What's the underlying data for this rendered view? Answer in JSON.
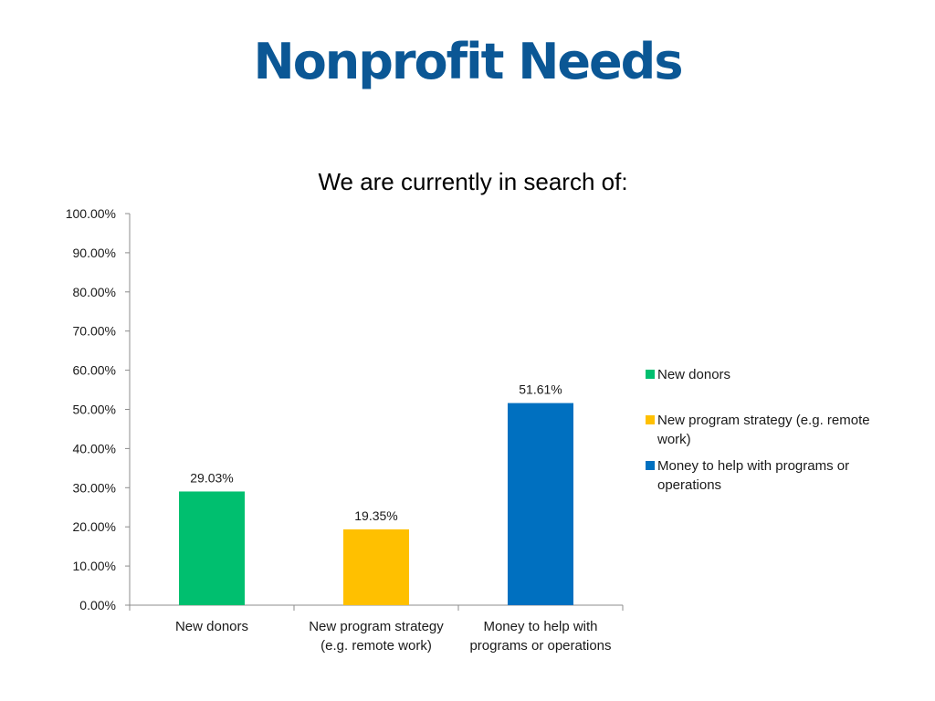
{
  "slide": {
    "title": "Nonprofit Needs"
  },
  "chart_data": {
    "type": "bar",
    "title": "We are currently in search of:",
    "xlabel": "",
    "ylabel": "",
    "ylim": [
      0,
      100
    ],
    "y_ticks": [
      0,
      10,
      20,
      30,
      40,
      50,
      60,
      70,
      80,
      90,
      100
    ],
    "y_tick_labels": [
      "0.00%",
      "10.00%",
      "20.00%",
      "30.00%",
      "40.00%",
      "50.00%",
      "60.00%",
      "70.00%",
      "80.00%",
      "90.00%",
      "100.00%"
    ],
    "categories": [
      [
        "New donors"
      ],
      [
        "New program strategy",
        "(e.g. remote work)"
      ],
      [
        "Money to help with",
        "programs or operations"
      ]
    ],
    "values": [
      29.03,
      19.35,
      51.61
    ],
    "data_labels": [
      "29.03%",
      "19.35%",
      "51.61%"
    ],
    "colors": [
      "#00bf6f",
      "#ffc000",
      "#0070c0"
    ],
    "grid": false,
    "legend": {
      "placement": "right",
      "entries": [
        {
          "lines": [
            "New donors"
          ],
          "color": "#00bf6f"
        },
        {
          "lines": [
            "New program strategy (e.g. remote",
            "work)"
          ],
          "color": "#ffc000"
        },
        {
          "lines": [
            "Money to help with programs or",
            "operations"
          ],
          "color": "#0070c0"
        }
      ]
    }
  }
}
